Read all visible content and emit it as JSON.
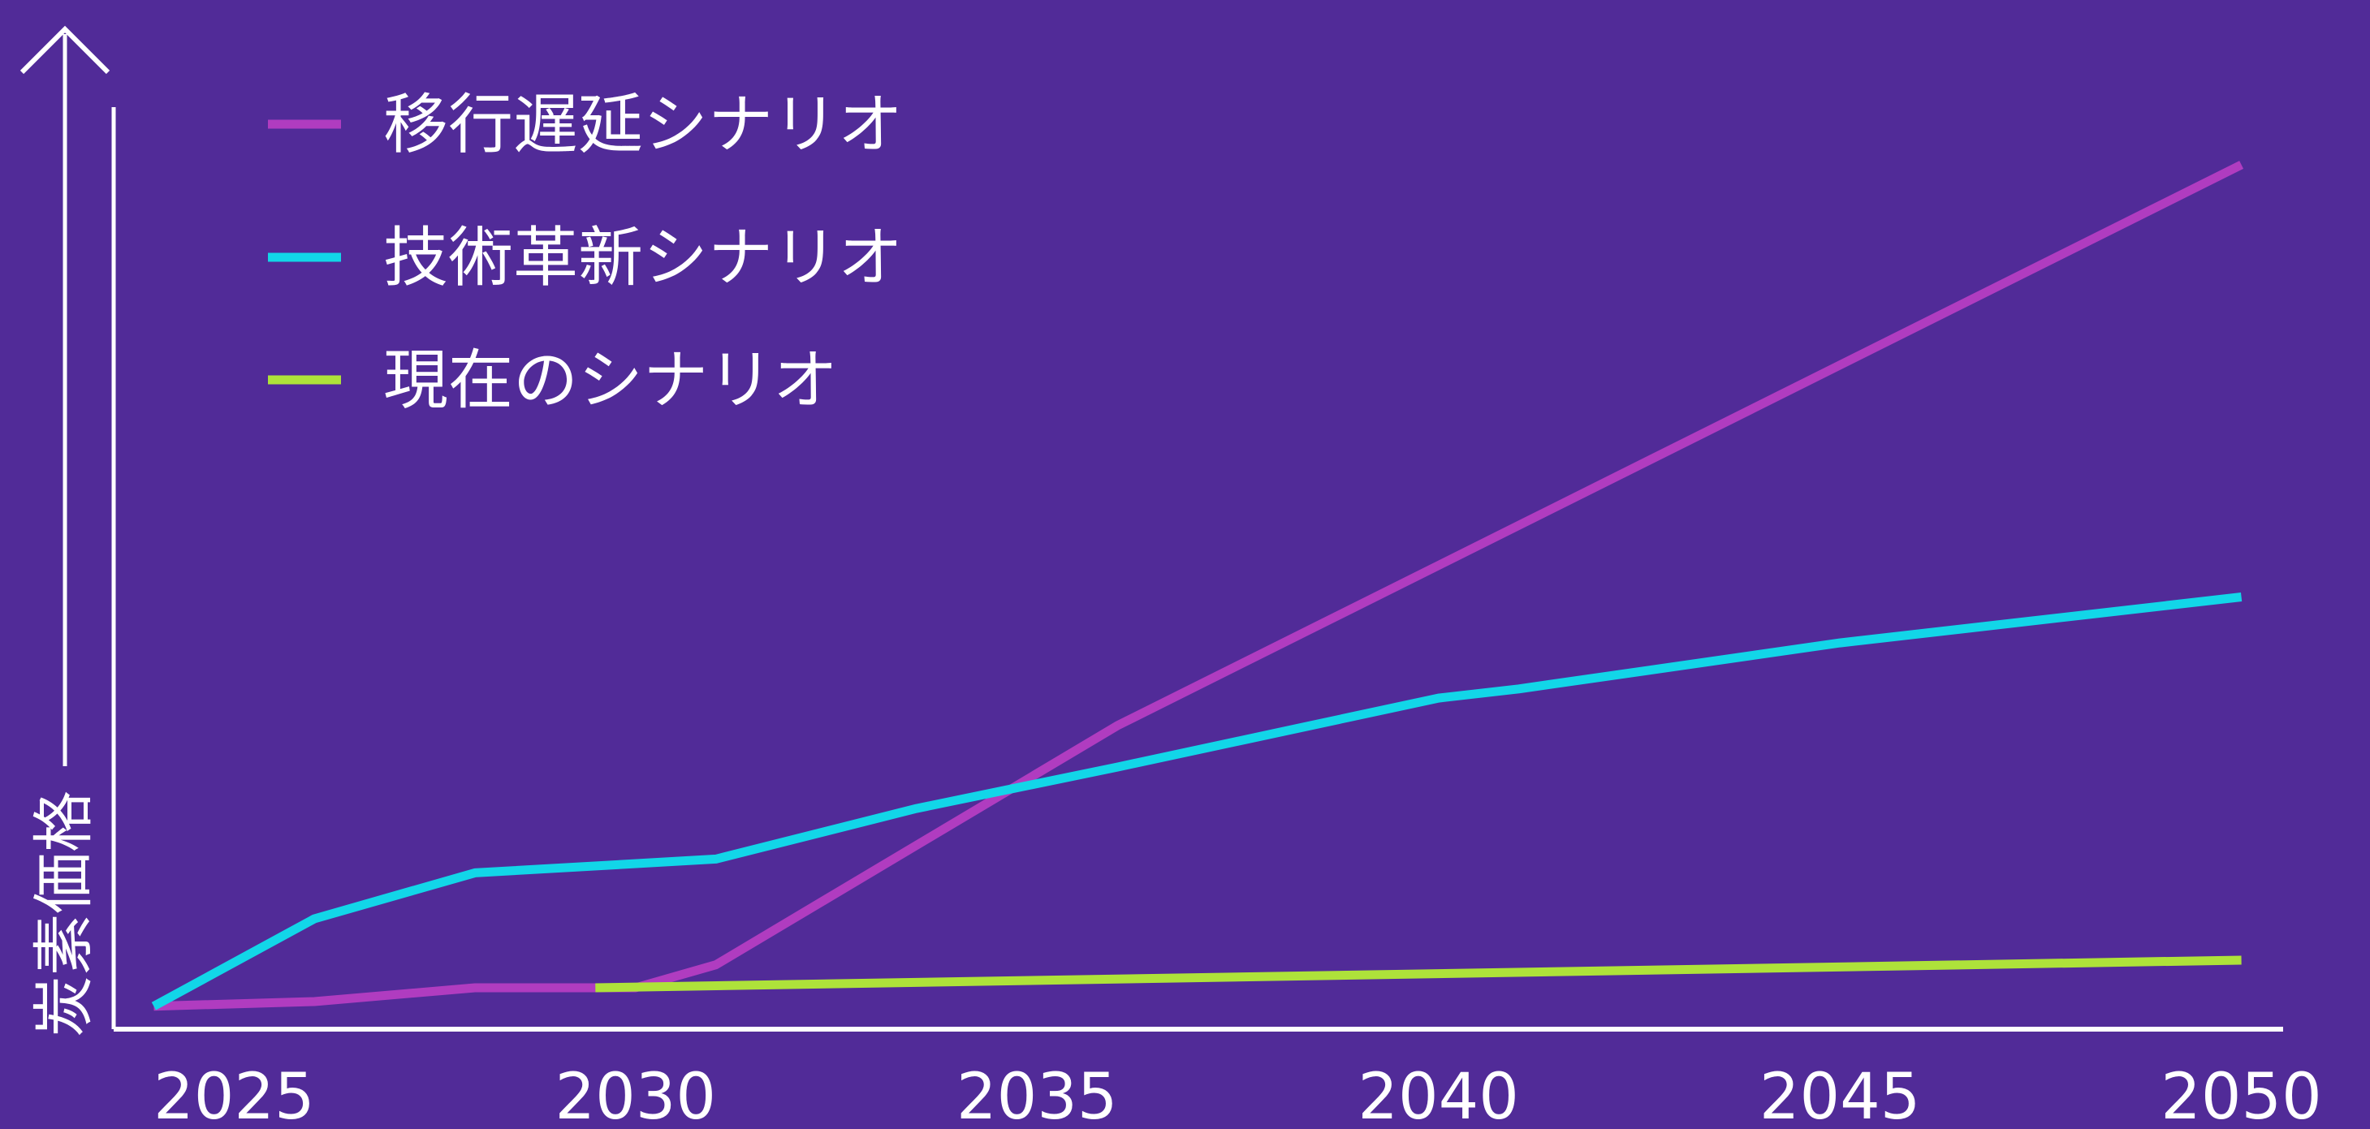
{
  "colors": {
    "background": "#512b98",
    "axis": "#ffffff",
    "text": "#ffffff"
  },
  "chart_data": {
    "type": "line",
    "title": "",
    "xlabel": "",
    "ylabel": "炭素価格",
    "y_axis_arrow": true,
    "y_tick_labels_shown": false,
    "grid": false,
    "legend_position": "top-left",
    "xlim": [
      2023.5,
      2050.5
    ],
    "ylim": [
      0,
      100
    ],
    "x_ticks": [
      2025,
      2030,
      2035,
      2040,
      2045,
      2050
    ],
    "x_tick_labels": [
      "2025",
      "2030",
      "2035",
      "2040",
      "2045",
      "2050"
    ],
    "series": [
      {
        "name": "移行遅延シナリオ",
        "color": "#b03cc0",
        "x": [
          2024,
          2026,
          2028,
          2030,
          2031,
          2036,
          2050
        ],
        "y": [
          2.5,
          3,
          4.5,
          4.5,
          7,
          33,
          94
        ]
      },
      {
        "name": "技術革新シナリオ",
        "color": "#12d6e8",
        "x": [
          2024,
          2026,
          2028,
          2031,
          2033.5,
          2036,
          2040,
          2041,
          2045,
          2050
        ],
        "y": [
          2.5,
          12,
          17,
          18.5,
          24,
          28.5,
          36,
          37,
          42,
          47
        ]
      },
      {
        "name": "現在のシナリオ",
        "color": "#aee23a",
        "x": [
          2029.5,
          2050
        ],
        "y": [
          4.5,
          7.5
        ]
      }
    ]
  }
}
